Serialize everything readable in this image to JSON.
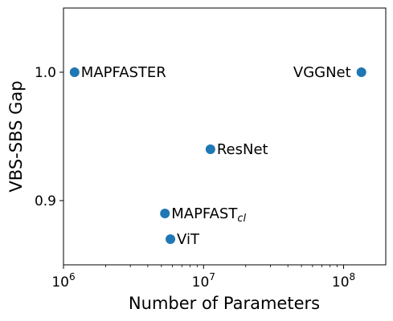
{
  "chart_data": {
    "type": "scatter",
    "title": "",
    "xlabel": "Number of Parameters",
    "ylabel": "VBS-SBS Gap",
    "xscale": "log",
    "xlim": [
      1000000,
      200000000
    ],
    "ylim": [
      0.85,
      1.05
    ],
    "grid": false,
    "marker_color": "#1f77b4",
    "xticks": [
      {
        "value": 1000000,
        "base": "10",
        "exp": "6"
      },
      {
        "value": 10000000,
        "base": "10",
        "exp": "7"
      },
      {
        "value": 100000000,
        "base": "10",
        "exp": "8"
      }
    ],
    "yticks": [
      {
        "value": 0.9,
        "label": "0.9"
      },
      {
        "value": 1.0,
        "label": "1.0"
      }
    ],
    "points": [
      {
        "name": "MAPFASTER",
        "sub": "",
        "x": 1200000,
        "y": 1.0,
        "label_side": "right"
      },
      {
        "name": "VGGNet",
        "sub": "",
        "x": 134000000,
        "y": 1.0,
        "label_side": "left"
      },
      {
        "name": "ResNet",
        "sub": "",
        "x": 11200000,
        "y": 0.94,
        "label_side": "right"
      },
      {
        "name": "MAPFAST",
        "sub": "cl",
        "x": 5300000,
        "y": 0.89,
        "label_side": "right"
      },
      {
        "name": "ViT",
        "sub": "",
        "x": 5800000,
        "y": 0.87,
        "label_side": "right"
      }
    ]
  }
}
